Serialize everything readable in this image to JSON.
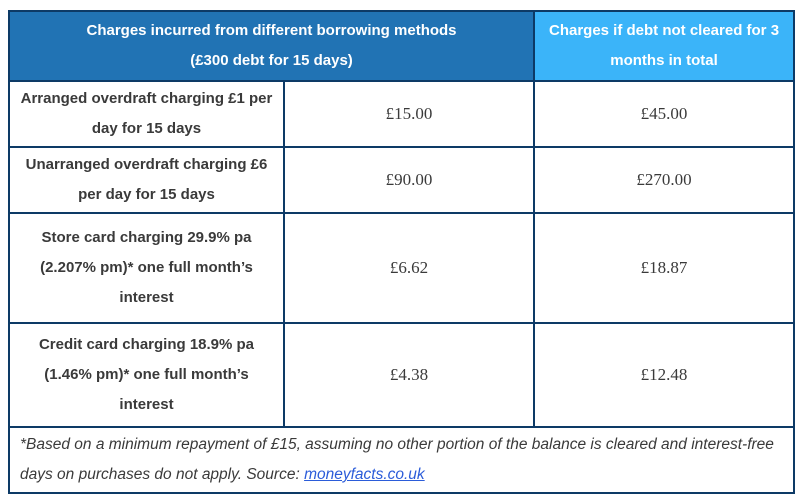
{
  "table": {
    "header": {
      "left_line1": "Charges incurred from different borrowing methods",
      "left_line2": "(£300 debt for 15 days)",
      "right": "Charges if debt not cleared for 3 months in total"
    },
    "rows": [
      {
        "label": "Arranged overdraft charging £1 per day for 15 days",
        "charge_15_days": "£15.00",
        "charge_3_months": "£45.00"
      },
      {
        "label": "Unarranged overdraft charging £6 per day for 15 days",
        "charge_15_days": "£90.00",
        "charge_3_months": "£270.00"
      },
      {
        "label": "Store card charging 29.9% pa (2.207% pm)* one full month’s interest",
        "charge_15_days": "£6.62",
        "charge_3_months": "£18.87"
      },
      {
        "label": "Credit card charging 18.9% pa (1.46% pm)* one full month’s interest",
        "charge_15_days": "£4.38",
        "charge_3_months": "£12.48"
      }
    ],
    "footnote": {
      "text_before_link": "*Based on a minimum repayment of £15, assuming no other portion of the balance is cleared and interest-free days on purchases do not apply. Source: ",
      "link_text": "moneyfacts.co.uk"
    },
    "colors": {
      "header_left_bg": "#2173b4",
      "header_right_bg": "#3bb4f9",
      "border": "#0d3a66",
      "label_text": "#3a3a3a",
      "link": "#2b5cd9"
    }
  }
}
